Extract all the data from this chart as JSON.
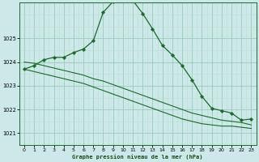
{
  "bg_color": "#cce8e8",
  "grid_color_major": "#99ccbb",
  "grid_color_minor": "#bbddcc",
  "line_color": "#1a6b2a",
  "xlabel": "Graphe pression niveau de la mer (hPa)",
  "xlim": [
    -0.5,
    23.5
  ],
  "ylim": [
    1020.5,
    1026.5
  ],
  "yticks": [
    1021,
    1022,
    1023,
    1024,
    1025
  ],
  "xticks": [
    0,
    1,
    2,
    3,
    4,
    5,
    6,
    7,
    8,
    9,
    10,
    11,
    12,
    13,
    14,
    15,
    16,
    17,
    18,
    19,
    20,
    21,
    22,
    23
  ],
  "series": {
    "peaked": [
      1023.7,
      1023.85,
      1024.1,
      1024.2,
      1024.2,
      1024.4,
      1024.55,
      1024.9,
      1026.1,
      1026.55,
      1026.6,
      1026.6,
      1026.05,
      1025.4,
      1024.7,
      1024.3,
      1023.85,
      1023.25,
      1022.55,
      1022.05,
      1021.95,
      1021.85,
      1021.55,
      1021.6
    ],
    "diag1": [
      1024.0,
      1023.95,
      1023.85,
      1023.75,
      1023.65,
      1023.55,
      1023.45,
      1023.3,
      1023.2,
      1023.05,
      1022.9,
      1022.75,
      1022.6,
      1022.45,
      1022.3,
      1022.15,
      1022.0,
      1021.85,
      1021.75,
      1021.65,
      1021.55,
      1021.5,
      1021.45,
      1021.35
    ],
    "diag2": [
      1023.7,
      1023.6,
      1023.5,
      1023.4,
      1023.3,
      1023.2,
      1023.1,
      1022.95,
      1022.8,
      1022.65,
      1022.5,
      1022.35,
      1022.2,
      1022.05,
      1021.9,
      1021.75,
      1021.6,
      1021.5,
      1021.4,
      1021.35,
      1021.3,
      1021.3,
      1021.25,
      1021.2
    ]
  }
}
